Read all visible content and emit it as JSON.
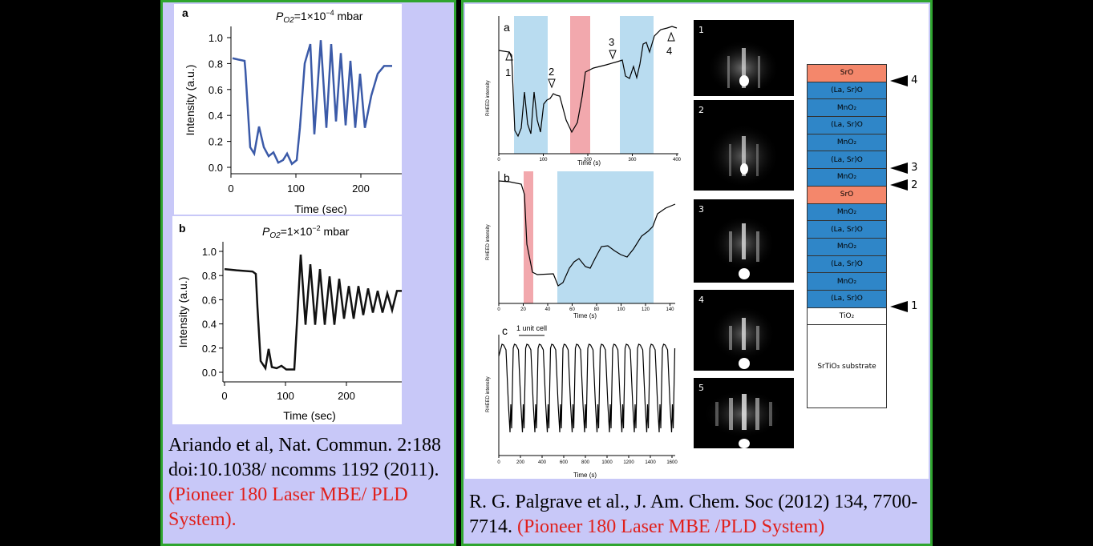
{
  "left_panel": {
    "figure_a": {
      "label": "a",
      "title": "P",
      "title_sub": "O2",
      "title_rest": "=1×10",
      "title_exp": "−4",
      "title_unit": " mbar",
      "ylabel": "Intensity (a.u.)",
      "xlabel": "Time (sec)",
      "yticks": [
        "1.0",
        "0.8",
        "0.6",
        "0.4",
        "0.2",
        "0.0"
      ],
      "xticks": [
        "0",
        "100",
        "200"
      ]
    },
    "figure_b": {
      "label": "b",
      "title": "P",
      "title_sub": "O2",
      "title_rest": "=1×10",
      "title_exp": "−2",
      "title_unit": " mbar",
      "ylabel": "Intensity (a.u.)",
      "xlabel": "Time (sec)",
      "yticks": [
        "1.0",
        "0.8",
        "0.6",
        "0.4",
        "0.2",
        "0.0"
      ],
      "xticks": [
        "0",
        "100",
        "200"
      ]
    },
    "caption_black": "Ariando et al, Nat. Commun. 2:188 doi:10.1038/ ncomms 1192 (2011). ",
    "caption_red": "(Pioneer 180 Laser MBE/ PLD System)."
  },
  "right_panel": {
    "plot_a": {
      "label": "a",
      "ylabel": "RHEED intensity",
      "xlabel": "Time (s)",
      "xticks": [
        "0",
        "100",
        "200",
        "300",
        "400"
      ],
      "markers": [
        "1",
        "2",
        "3",
        "4"
      ]
    },
    "plot_b": {
      "label": "b",
      "ylabel": "RHEED intensity",
      "xlabel": "Time (s)",
      "xticks": [
        "0",
        "20",
        "40",
        "60",
        "80",
        "100",
        "120",
        "140"
      ]
    },
    "plot_c": {
      "label": "c",
      "ylabel": "RHEED intensity",
      "xlabel": "Time (s)",
      "annotation": "1 unit cell",
      "xticks": [
        "0",
        "200",
        "400",
        "600",
        "800",
        "1000",
        "1200",
        "1400",
        "1600"
      ]
    },
    "rheed_images": [
      "1",
      "2",
      "3",
      "4",
      "5"
    ],
    "stack": {
      "layers": [
        {
          "label": "SrO",
          "color": "#f4876b",
          "marker": "4"
        },
        {
          "label": "(La, Sr)O",
          "color": "#2f86c8",
          "marker": ""
        },
        {
          "label": "MnO₂",
          "color": "#2f86c8",
          "marker": ""
        },
        {
          "label": "(La, Sr)O",
          "color": "#2f86c8",
          "marker": ""
        },
        {
          "label": "MnO₂",
          "color": "#2f86c8",
          "marker": ""
        },
        {
          "label": "(La, Sr)O",
          "color": "#2f86c8",
          "marker": ""
        },
        {
          "label": "MnO₂",
          "color": "#2f86c8",
          "marker": "3"
        },
        {
          "label": "SrO",
          "color": "#f4876b",
          "marker": "2"
        },
        {
          "label": "MnO₂",
          "color": "#2f86c8",
          "marker": ""
        },
        {
          "label": "(La, Sr)O",
          "color": "#2f86c8",
          "marker": ""
        },
        {
          "label": "MnO₂",
          "color": "#2f86c8",
          "marker": ""
        },
        {
          "label": "(La, Sr)O",
          "color": "#2f86c8",
          "marker": ""
        },
        {
          "label": "MnO₂",
          "color": "#2f86c8",
          "marker": ""
        },
        {
          "label": "(La, Sr)O",
          "color": "#2f86c8",
          "marker": "1"
        },
        {
          "label": "TiO₂",
          "color": "#ffffff",
          "marker": ""
        }
      ],
      "substrate": "SrTiO₃ substrate"
    },
    "caption_black": "R. G. Palgrave et al., J. Am. Chem. Soc (2012) 134, 7700-7714. ",
    "caption_red": "(Pioneer 180 Laser MBE /PLD System)"
  },
  "colors": {
    "panel_bg": "#c8c8f8",
    "border": "#2fa52f",
    "curve_a": "#3b5aa8",
    "blue_band": "#b9dcf0",
    "red_band": "#f2a8ad",
    "caption_red": "#e0201c"
  }
}
